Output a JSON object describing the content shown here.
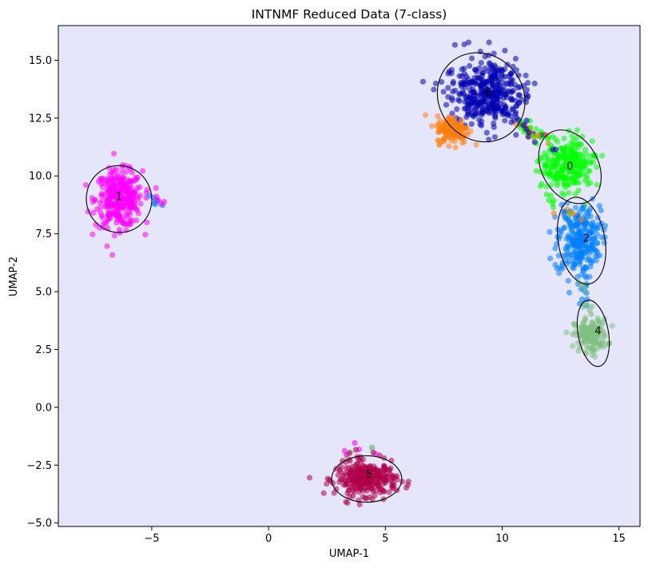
{
  "chart_data": {
    "type": "scatter",
    "title": "INTNMF Reduced Data (7-class)",
    "xlabel": "UMAP-1",
    "ylabel": "UMAP-2",
    "xlim": [
      -9.0,
      15.9
    ],
    "ylim": [
      -5.15,
      16.5
    ],
    "xticks": [
      -5,
      0,
      5,
      10,
      15
    ],
    "xtick_labels": [
      "−5",
      "0",
      "5",
      "10",
      "15"
    ],
    "yticks": [
      -5.0,
      -2.5,
      0.0,
      2.5,
      5.0,
      7.5,
      10.0,
      12.5,
      15.0
    ],
    "ytick_labels": [
      "−5.0",
      "−2.5",
      "0.0",
      "2.5",
      "5.0",
      "7.5",
      "10.0",
      "12.5",
      "15.0"
    ],
    "grid": false,
    "background": "#e6e6fa",
    "clusters": [
      {
        "label": "0",
        "color": "#00ff00",
        "center": [
          12.8,
          10.5
        ],
        "ellipse": {
          "center": [
            12.9,
            10.4
          ],
          "width": 2.4,
          "height": 3.4,
          "angle": -30
        },
        "label_pos": [
          12.9,
          10.4
        ]
      },
      {
        "label": "1",
        "color": "#ff00ff",
        "center": [
          -6.4,
          9.0
        ],
        "ellipse": {
          "center": [
            -6.4,
            9.0
          ],
          "width": 2.8,
          "height": 2.9,
          "angle": -15
        },
        "label_pos": [
          -6.4,
          9.1
        ]
      },
      {
        "label": "2",
        "color": "#0080ff",
        "center": [
          13.3,
          7.2
        ],
        "ellipse": {
          "center": [
            13.4,
            7.2
          ],
          "width": 2.0,
          "height": 3.8,
          "angle": -10
        },
        "label_pos": [
          13.6,
          7.3
        ]
      },
      {
        "label": "4",
        "color": "#80bf80",
        "center": [
          13.8,
          3.1
        ],
        "ellipse": {
          "center": [
            13.9,
            3.2
          ],
          "width": 1.3,
          "height": 2.9,
          "angle": -10
        },
        "label_pos": [
          14.1,
          3.3
        ]
      },
      {
        "label": "5",
        "color": "#b0004a",
        "center": [
          4.2,
          -3.1
        ],
        "ellipse": {
          "center": [
            4.2,
            -3.1
          ],
          "width": 3.0,
          "height": 2.0,
          "angle": 0
        },
        "label_pos": [
          4.3,
          -2.9
        ]
      },
      {
        "label": "6",
        "color": "#0000b0",
        "center": [
          9.3,
          13.6
        ],
        "ellipse": {
          "center": [
            9.1,
            13.4
          ],
          "width": 3.6,
          "height": 4.0,
          "angle": -40
        },
        "label_pos": [
          9.4,
          13.6
        ]
      },
      {
        "label": "",
        "color": "#ff7f0e",
        "center": [
          7.9,
          12.0
        ],
        "ellipse": null,
        "label_pos": null
      }
    ]
  }
}
